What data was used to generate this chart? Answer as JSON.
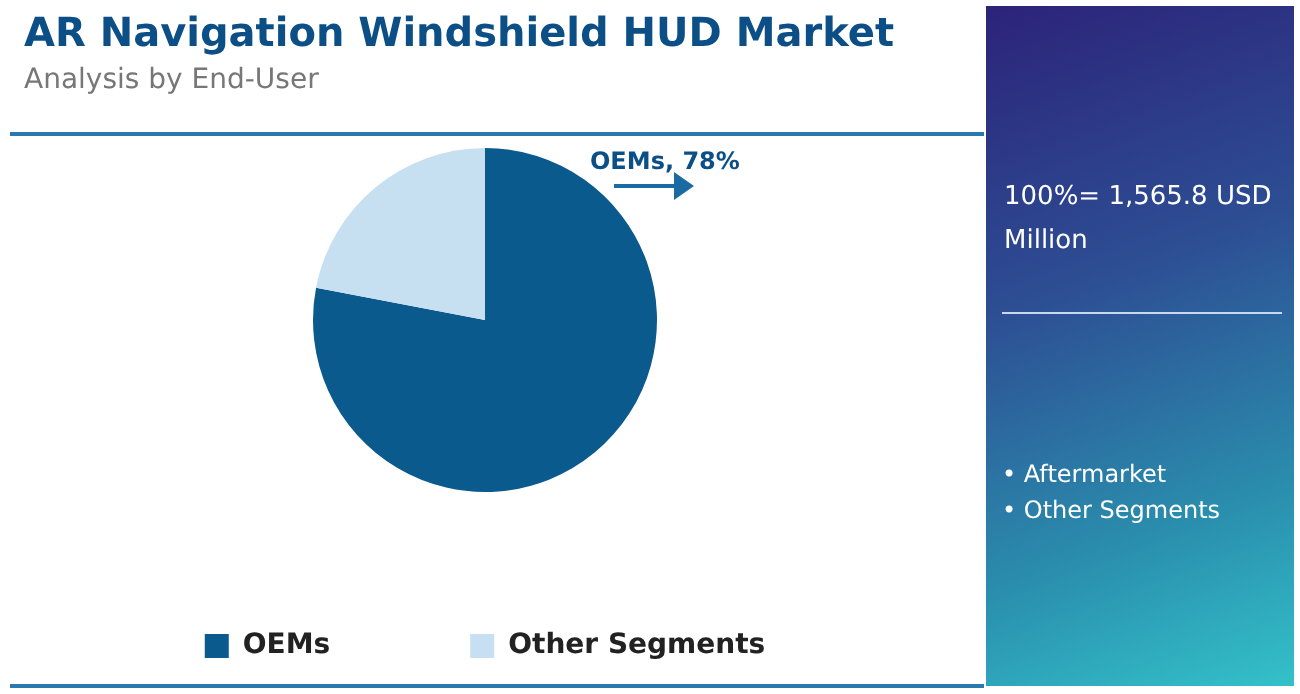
{
  "chart_data": {
    "type": "pie",
    "title": "AR Navigation Windshield HUD Market",
    "subtitle": "Analysis by End-User",
    "categories": [
      "OEMs",
      "Other Segments"
    ],
    "values": [
      78,
      22
    ],
    "colors": [
      "#0b5a8e",
      "#c6e0f1"
    ],
    "value_labels": [
      "OEMs, 78%",
      null
    ],
    "legend": "bottom",
    "annotations": [
      "100%= 1,565.8 USD Million",
      "• Aftermarket",
      "• Other Segments"
    ]
  }
}
